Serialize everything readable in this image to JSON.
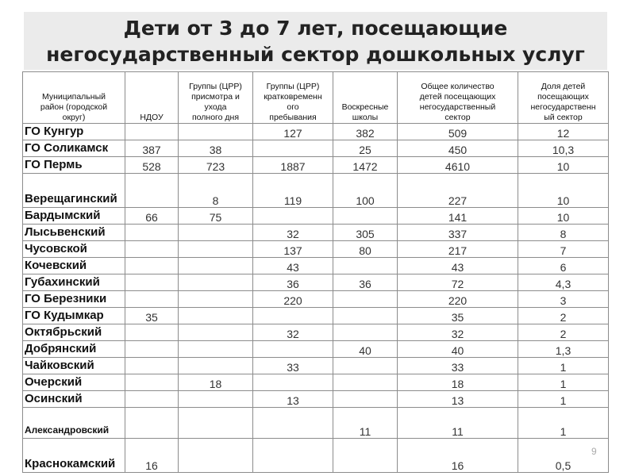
{
  "title": "Дети от 3 до 7 лет, посещающие негосударственный сектор дошкольных услуг",
  "page_number": "9",
  "table": {
    "header": [
      [
        "Муниципальный",
        "район (городской",
        "округ)"
      ],
      [
        "НДОУ"
      ],
      [
        "Группы (ЦРР)",
        "присмотра и",
        "ухода",
        "полного дня"
      ],
      [
        "Группы (ЦРР)",
        "кратковременн",
        "ого",
        "пребывания"
      ],
      [
        "Воскресные",
        "школы"
      ],
      [
        "Общее количество",
        "детей посещающих",
        "негосударственный",
        "сектор"
      ],
      [
        "Доля детей",
        "посещающих",
        "негосударственн",
        "ый сектор"
      ]
    ],
    "rows": [
      [
        "ГО Кунгур",
        null,
        null,
        "127",
        "382",
        "509",
        "12"
      ],
      [
        "ГО Соликамск",
        "387",
        "38",
        null,
        "25",
        "450",
        "10,3"
      ],
      [
        "ГО Пермь",
        "528",
        "723",
        "1887",
        "1472",
        "4610",
        "10"
      ],
      [
        "Верещагинский",
        null,
        "8",
        "119",
        "100",
        "227",
        "10"
      ],
      [
        "Бардымский",
        "66",
        "75",
        null,
        null,
        "141",
        "10"
      ],
      [
        "Лысьвенский",
        null,
        null,
        "32",
        "305",
        "337",
        "8"
      ],
      [
        "Чусовской",
        null,
        null,
        "137",
        "80",
        "217",
        "7"
      ],
      [
        "Кочевский",
        null,
        null,
        "43",
        null,
        "43",
        "6"
      ],
      [
        "Губахинский",
        null,
        null,
        "36",
        "36",
        "72",
        "4,3"
      ],
      [
        "ГО Березники",
        null,
        null,
        "220",
        null,
        "220",
        "3"
      ],
      [
        "ГО Кудымкар",
        "35",
        null,
        null,
        null,
        "35",
        "2"
      ],
      [
        "Октябрьский",
        null,
        null,
        "32",
        null,
        "32",
        "2"
      ],
      [
        "Добрянский",
        null,
        null,
        null,
        "40",
        "40",
        "1,3"
      ],
      [
        "Чайковский",
        null,
        null,
        "33",
        null,
        "33",
        "1"
      ],
      [
        "Очерский",
        null,
        "18",
        null,
        null,
        "18",
        "1"
      ],
      [
        "Осинский",
        null,
        null,
        "13",
        null,
        "13",
        "1"
      ],
      [
        "Александровский",
        null,
        null,
        null,
        "11",
        "11",
        "1"
      ],
      [
        "Краснокамский",
        "16",
        null,
        null,
        null,
        "16",
        "0,5"
      ]
    ]
  }
}
